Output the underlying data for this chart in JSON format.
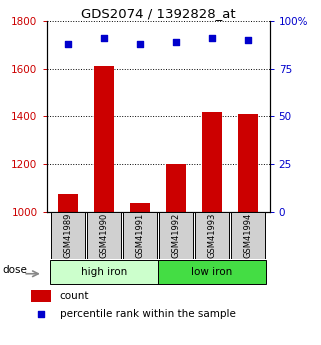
{
  "title": "GDS2074 / 1392828_at",
  "samples": [
    "GSM41989",
    "GSM41990",
    "GSM41991",
    "GSM41992",
    "GSM41993",
    "GSM41994"
  ],
  "counts": [
    1075,
    1610,
    1040,
    1200,
    1420,
    1410
  ],
  "percentiles": [
    88,
    91,
    88,
    89,
    91,
    90
  ],
  "groups": [
    {
      "label": "high iron",
      "color": "#ccffcc",
      "n_samples": 3
    },
    {
      "label": "low iron",
      "color": "#44dd44",
      "n_samples": 3
    }
  ],
  "bar_color": "#cc0000",
  "dot_color": "#0000cc",
  "left_axis_color": "#cc0000",
  "right_axis_color": "#0000cc",
  "ylim_left": [
    1000,
    1800
  ],
  "yticks_left": [
    1000,
    1200,
    1400,
    1600,
    1800
  ],
  "ylim_right": [
    0,
    100
  ],
  "yticks_right": [
    0,
    25,
    50,
    75,
    100
  ],
  "ytick_labels_right": [
    "0",
    "25",
    "50",
    "75",
    "100%"
  ],
  "grid_color": "#000000",
  "dose_label": "dose",
  "legend_count": "count",
  "legend_percentile": "percentile rank within the sample",
  "sample_box_color": "#d0d0d0",
  "bar_width": 0.55
}
